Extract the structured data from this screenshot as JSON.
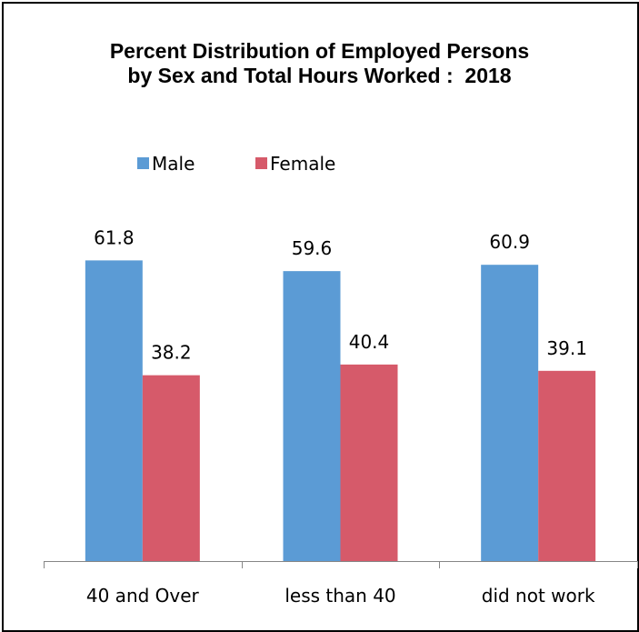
{
  "chart_data": {
    "type": "bar",
    "title_lines": [
      "Percent Distribution of Employed Persons",
      "by Sex and Total Hours Worked :  2018"
    ],
    "categories": [
      "40 and Over",
      "less than 40",
      "did not work"
    ],
    "series": [
      {
        "name": "Male",
        "values": [
          61.8,
          59.6,
          60.9
        ],
        "color": "#5B9BD5"
      },
      {
        "name": "Female",
        "values": [
          38.2,
          40.4,
          39.1
        ],
        "color": "#D65A6A"
      }
    ],
    "value_labels": [
      [
        "61.8",
        "59.6",
        "60.9"
      ],
      [
        "38.2",
        "40.4",
        "39.1"
      ]
    ],
    "ylim": [
      0,
      70
    ],
    "grid": false,
    "legend_position": "top-left",
    "axis_color": "#868686"
  }
}
